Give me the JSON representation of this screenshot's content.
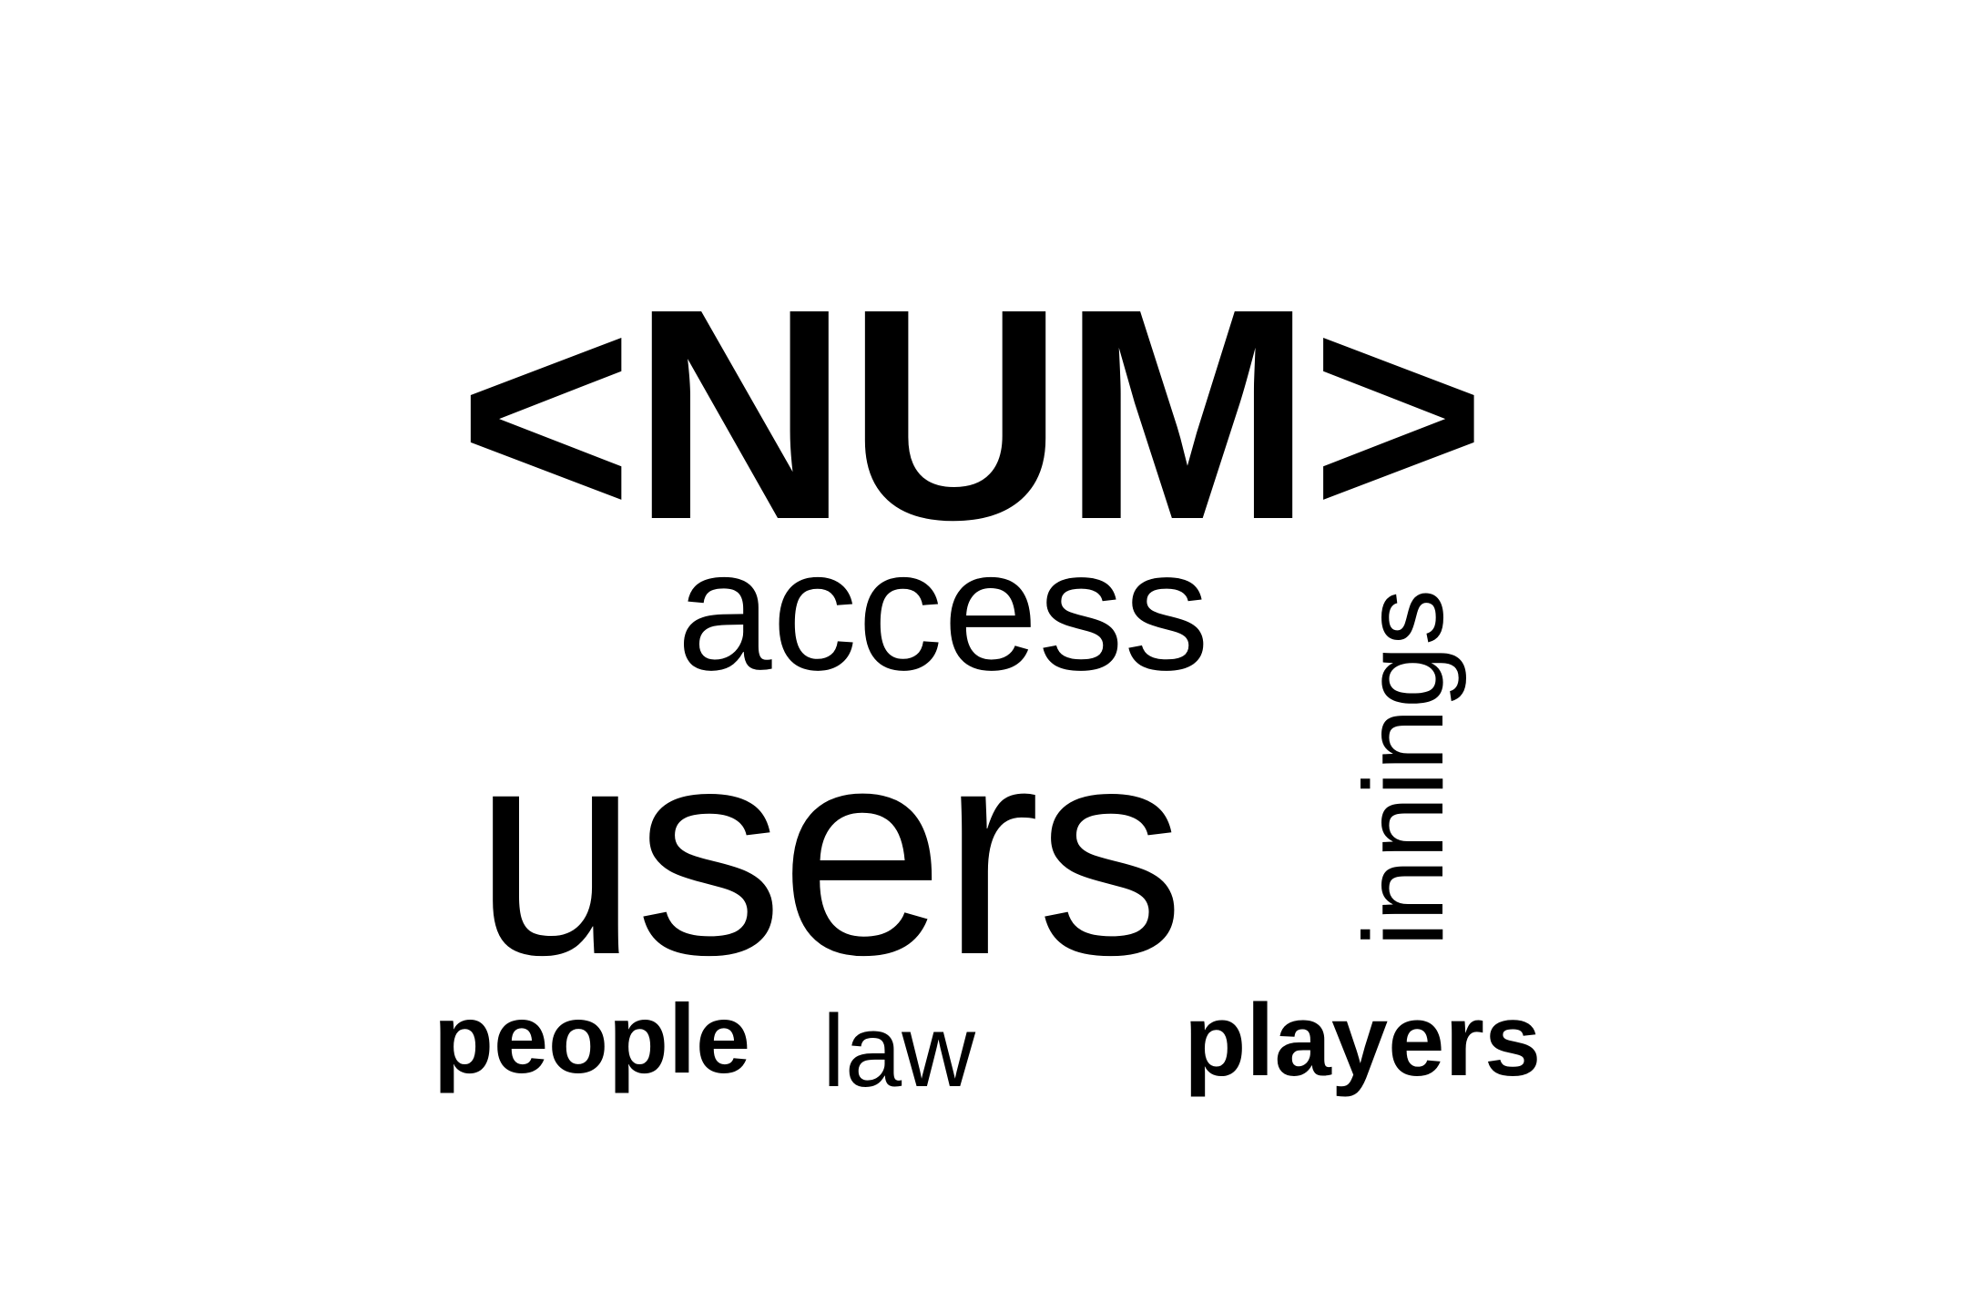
{
  "word_cloud": {
    "words": [
      {
        "text": "<NUM>",
        "orientation": "horizontal"
      },
      {
        "text": "access",
        "orientation": "horizontal"
      },
      {
        "text": "users",
        "orientation": "horizontal"
      },
      {
        "text": "innings",
        "orientation": "vertical"
      },
      {
        "text": "people",
        "orientation": "horizontal"
      },
      {
        "text": "law",
        "orientation": "horizontal"
      },
      {
        "text": "players",
        "orientation": "horizontal"
      }
    ],
    "text_color": "#000000",
    "background_color": "#ffffff"
  }
}
